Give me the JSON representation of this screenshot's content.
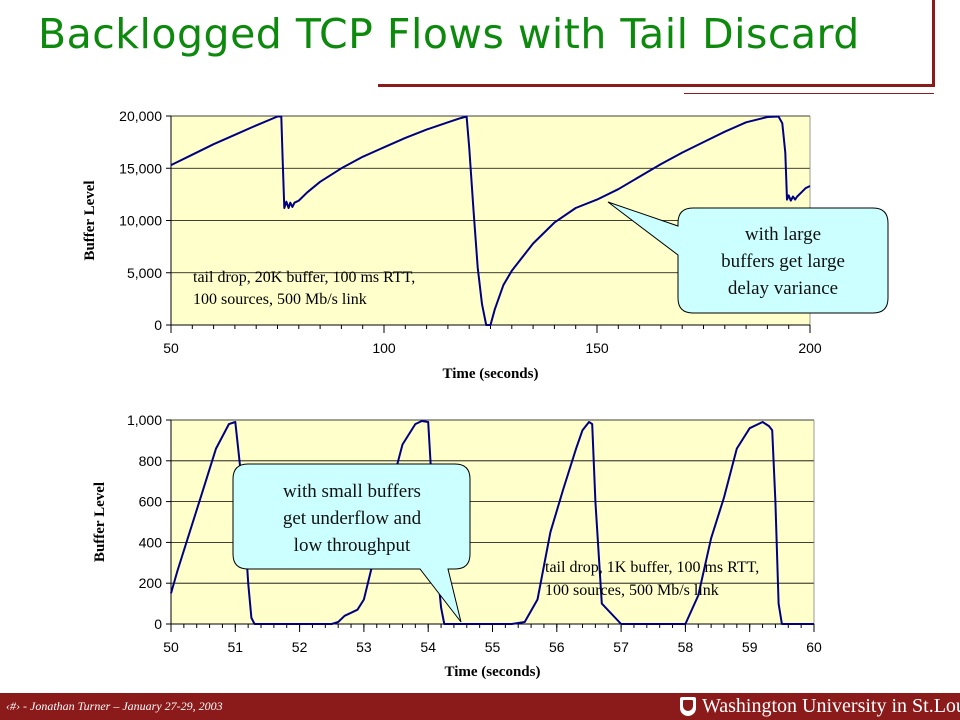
{
  "slide": {
    "title": "Backlogged TCP Flows with Tail Discard",
    "footer_text": "‹#› - Jonathan Turner – January 27-29, 2003",
    "footer_logo_text": "Washington University in St.Louis"
  },
  "callouts": {
    "top": [
      "with large",
      "buffers get large",
      "delay variance"
    ],
    "bottom": [
      "with small buffers",
      "get underflow and",
      "low throughput"
    ]
  },
  "colors": {
    "title": "#0d8a0d",
    "footer": "#8b1a1a",
    "plot_bg": "#ffffcc",
    "line": "#000080",
    "callout_fill": "#ccffff"
  },
  "chart_data": [
    {
      "type": "line",
      "xlabel": "Time (seconds)",
      "ylabel": "Buffer Level",
      "xlim": [
        50,
        200
      ],
      "ylim": [
        0,
        20000
      ],
      "xticks": [
        50,
        100,
        150,
        200
      ],
      "xtick_labels": [
        "50",
        "100",
        "150",
        "200"
      ],
      "yticks": [
        0,
        5000,
        10000,
        15000,
        20000
      ],
      "ytick_labels": [
        "0",
        "5,000",
        "10,000",
        "15,000",
        "20,000"
      ],
      "annotation": [
        "tail drop, 20K buffer, 100 ms RTT,",
        "100 sources, 500 Mb/s link"
      ],
      "grid": "horizontal",
      "series": [
        {
          "x": [
            50,
            55,
            60,
            65,
            70,
            75,
            75.9,
            76.2,
            76.6,
            77.1,
            77.6,
            78,
            78.5,
            79,
            80,
            82,
            85,
            90,
            95,
            100,
            105,
            110,
            115,
            118,
            119.4,
            120,
            121,
            122,
            123,
            124,
            125,
            126,
            128,
            130,
            135,
            140,
            145,
            150,
            155,
            160,
            165,
            170,
            175,
            180,
            185,
            190,
            192.6,
            193.5,
            194.2,
            194.6,
            195,
            195.5,
            196,
            196.5,
            197,
            198,
            199,
            200
          ],
          "y": [
            15300,
            16300,
            17300,
            18200,
            19100,
            19950,
            19950,
            16000,
            11200,
            11800,
            11200,
            11700,
            11300,
            11700,
            11900,
            12700,
            13700,
            15000,
            16100,
            17000,
            17900,
            18700,
            19400,
            19800,
            19950,
            17000,
            11000,
            5500,
            2000,
            0,
            0,
            1500,
            3800,
            5200,
            7800,
            9800,
            11200,
            12000,
            13000,
            14200,
            15400,
            16500,
            17500,
            18500,
            19400,
            19900,
            19950,
            19300,
            16500,
            12000,
            12400,
            11900,
            12300,
            12000,
            12300,
            12700,
            13100,
            13300
          ]
        }
      ]
    },
    {
      "type": "line",
      "xlabel": "Time (seconds)",
      "ylabel": "Buffer Level",
      "xlim": [
        50,
        60
      ],
      "ylim": [
        0,
        1000
      ],
      "xticks": [
        50,
        51,
        52,
        53,
        54,
        55,
        56,
        57,
        58,
        59,
        60
      ],
      "xtick_labels": [
        "50",
        "51",
        "52",
        "53",
        "54",
        "55",
        "56",
        "57",
        "58",
        "59",
        "60"
      ],
      "yticks": [
        0,
        200,
        400,
        600,
        800,
        1000
      ],
      "ytick_labels": [
        "0",
        "200",
        "400",
        "600",
        "800",
        "1,000"
      ],
      "annotation": [
        "tail drop, 1K buffer, 100 ms RTT,",
        "100 sources, 500 Mb/s link"
      ],
      "grid": "horizontal",
      "series": [
        {
          "x": [
            50,
            50.1,
            50.3,
            50.5,
            50.7,
            50.9,
            51.0,
            51.1,
            51.2,
            51.25,
            51.3,
            52.0,
            52.5,
            52.6,
            52.7,
            52.8,
            52.9,
            53.0,
            53.2,
            53.4,
            53.6,
            53.8,
            53.9,
            54.0,
            54.05,
            54.1,
            54.2,
            54.25,
            54.3,
            55.0,
            55.3,
            55.5,
            55.7,
            55.9,
            56.1,
            56.3,
            56.4,
            56.5,
            56.55,
            56.6,
            56.7,
            57.0,
            58.0,
            58.2,
            58.4,
            58.6,
            58.8,
            59.0,
            59.2,
            59.3,
            59.35,
            59.4,
            59.45,
            59.5,
            60.0
          ],
          "y": [
            150,
            260,
            460,
            660,
            860,
            980,
            990,
            700,
            200,
            30,
            0,
            0,
            0,
            10,
            40,
            55,
            70,
            120,
            380,
            640,
            880,
            980,
            995,
            990,
            720,
            400,
            80,
            0,
            0,
            0,
            0,
            10,
            120,
            450,
            660,
            860,
            950,
            990,
            980,
            600,
            100,
            0,
            0,
            140,
            420,
            620,
            860,
            960,
            990,
            970,
            950,
            600,
            100,
            0,
            0
          ]
        }
      ]
    }
  ]
}
